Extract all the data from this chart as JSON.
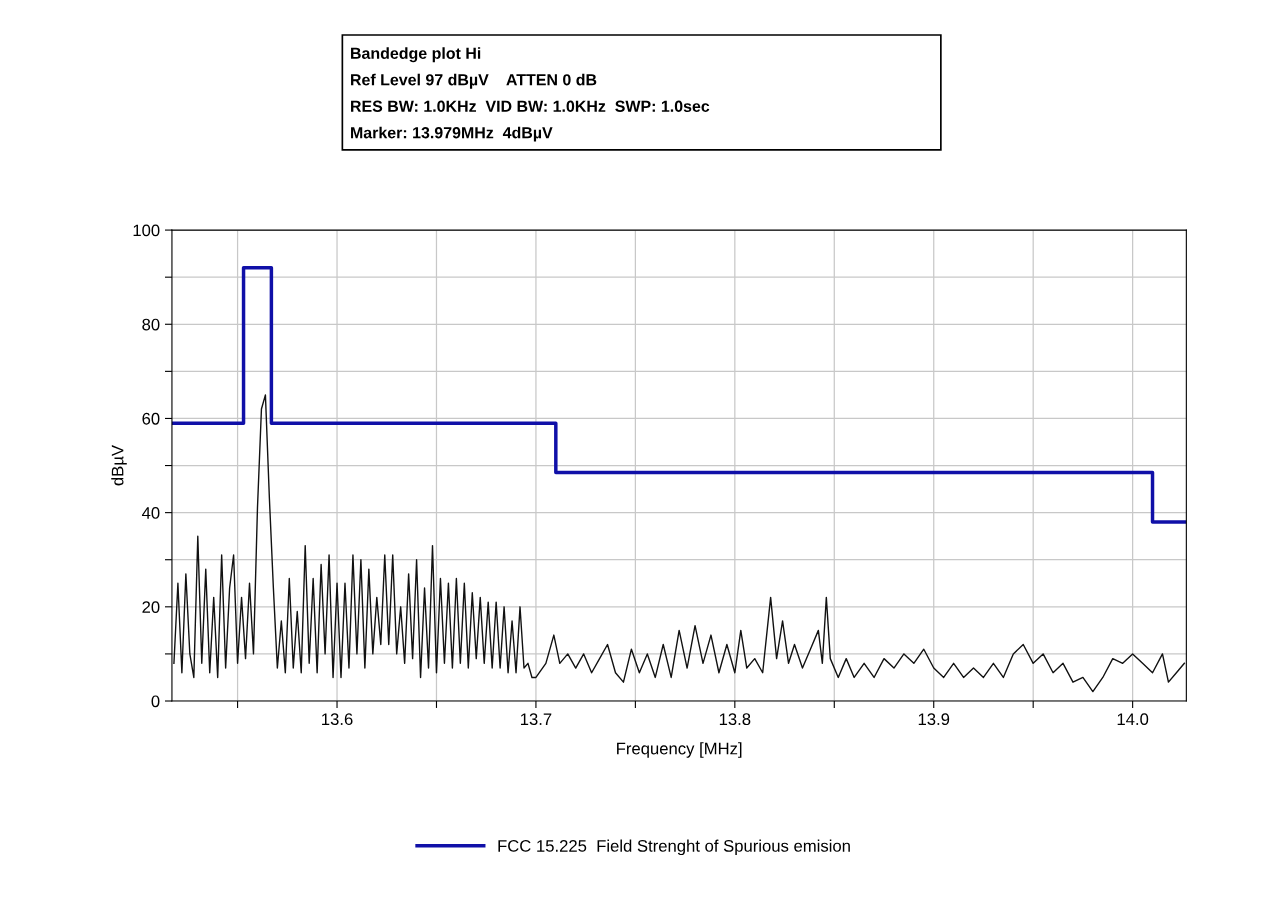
{
  "chart_data": {
    "type": "line",
    "title": "Bandedge plot Hi",
    "annotations": [
      "Ref Level 97 dBµV    ATTEN 0 dB",
      "RES BW: 1.0KHz  VID BW: 1.0KHz  SWP: 1.0sec",
      "Marker: 13.979MHz  4dBµV"
    ],
    "xlabel": "Frequency [MHz]",
    "ylabel": "dBµV",
    "xlim": [
      13.517,
      14.027
    ],
    "ylim": [
      0,
      100
    ],
    "xticks": [
      {
        "value": 13.55,
        "label": null
      },
      13.6,
      {
        "value": 13.65,
        "label": null
      },
      13.7,
      {
        "value": 13.75,
        "label": null
      },
      13.8,
      {
        "value": 13.85,
        "label": null
      },
      13.9,
      {
        "value": 13.95,
        "label": null
      },
      {
        "value": 14.0,
        "label": "14.0"
      }
    ],
    "yticks": [
      0,
      {
        "value": 10,
        "label": null
      },
      20,
      {
        "value": 30,
        "label": null
      },
      40,
      {
        "value": 50,
        "label": null
      },
      60,
      {
        "value": 70,
        "label": null
      },
      80,
      {
        "value": 90,
        "label": null
      },
      100
    ],
    "grid": true,
    "legend": "bottom",
    "series": [
      {
        "color": "#111111",
        "x": [
          13.518,
          13.52,
          13.522,
          13.524,
          13.526,
          13.528,
          13.53,
          13.532,
          13.534,
          13.536,
          13.538,
          13.54,
          13.542,
          13.544,
          13.546,
          13.548,
          13.55,
          13.552,
          13.554,
          13.556,
          13.558,
          13.56,
          13.562,
          13.564,
          13.566,
          13.568,
          13.57,
          13.572,
          13.574,
          13.576,
          13.578,
          13.58,
          13.582,
          13.584,
          13.586,
          13.588,
          13.59,
          13.592,
          13.594,
          13.596,
          13.598,
          13.6,
          13.602,
          13.604,
          13.606,
          13.608,
          13.61,
          13.612,
          13.614,
          13.616,
          13.618,
          13.62,
          13.622,
          13.624,
          13.626,
          13.628,
          13.63,
          13.632,
          13.634,
          13.636,
          13.638,
          13.64,
          13.642,
          13.644,
          13.646,
          13.648,
          13.65,
          13.652,
          13.654,
          13.656,
          13.658,
          13.66,
          13.662,
          13.664,
          13.666,
          13.668,
          13.67,
          13.672,
          13.674,
          13.676,
          13.678,
          13.68,
          13.682,
          13.684,
          13.686,
          13.688,
          13.69,
          13.692,
          13.694,
          13.696,
          13.698,
          13.7,
          13.705,
          13.709,
          13.712,
          13.716,
          13.72,
          13.724,
          13.728,
          13.732,
          13.736,
          13.74,
          13.744,
          13.748,
          13.752,
          13.756,
          13.76,
          13.764,
          13.768,
          13.772,
          13.776,
          13.78,
          13.784,
          13.788,
          13.792,
          13.796,
          13.8,
          13.803,
          13.806,
          13.81,
          13.814,
          13.818,
          13.821,
          13.824,
          13.827,
          13.83,
          13.834,
          13.838,
          13.842,
          13.844,
          13.846,
          13.848,
          13.852,
          13.856,
          13.86,
          13.865,
          13.87,
          13.875,
          13.88,
          13.885,
          13.89,
          13.895,
          13.9,
          13.905,
          13.91,
          13.915,
          13.92,
          13.925,
          13.93,
          13.935,
          13.94,
          13.945,
          13.95,
          13.955,
          13.96,
          13.965,
          13.97,
          13.975,
          13.98,
          13.985,
          13.99,
          13.995,
          14.0,
          14.005,
          14.01,
          14.015,
          14.018,
          14.022,
          14.026
        ],
        "values": [
          8,
          25,
          6,
          27,
          10,
          5,
          35,
          8,
          28,
          6,
          22,
          5,
          31,
          7,
          24,
          31,
          8,
          22,
          9,
          25,
          10,
          41,
          62,
          65,
          43,
          24,
          7,
          17,
          6,
          26,
          7,
          19,
          6,
          33,
          8,
          26,
          6,
          29,
          10,
          31,
          5,
          25,
          5,
          25,
          7,
          31,
          10,
          30,
          7,
          28,
          10,
          22,
          12,
          31,
          12,
          31,
          10,
          20,
          8,
          27,
          9,
          30,
          5,
          24,
          7,
          33,
          6,
          26,
          8,
          25,
          7,
          26,
          8,
          25,
          7,
          23,
          9,
          22,
          8,
          21,
          7,
          21,
          7,
          20,
          6,
          17,
          6,
          20,
          7,
          8,
          5,
          5,
          8,
          14,
          8,
          10,
          7,
          10,
          6,
          9,
          12,
          6,
          4,
          11,
          6,
          10,
          5,
          12,
          5,
          15,
          7,
          16,
          8,
          14,
          6,
          12,
          6,
          15,
          7,
          9,
          6,
          22,
          9,
          17,
          8,
          12,
          7,
          11,
          15,
          8,
          22,
          9,
          5,
          9,
          5,
          8,
          5,
          9,
          7,
          10,
          8,
          11,
          7,
          5,
          8,
          5,
          7,
          5,
          8,
          5,
          10,
          12,
          8,
          10,
          6,
          8,
          4,
          5,
          2,
          5,
          9,
          8,
          10,
          8,
          6,
          10,
          4,
          6,
          8
        ]
      },
      {
        "name": "FCC 15.225  Field Strenght of Spurious emision",
        "color": "#1010a8",
        "type": "step",
        "x": [
          13.517,
          13.553,
          13.567,
          13.71,
          14.01,
          14.027
        ],
        "values": [
          59,
          92,
          59,
          48.5,
          38,
          38
        ]
      }
    ]
  }
}
